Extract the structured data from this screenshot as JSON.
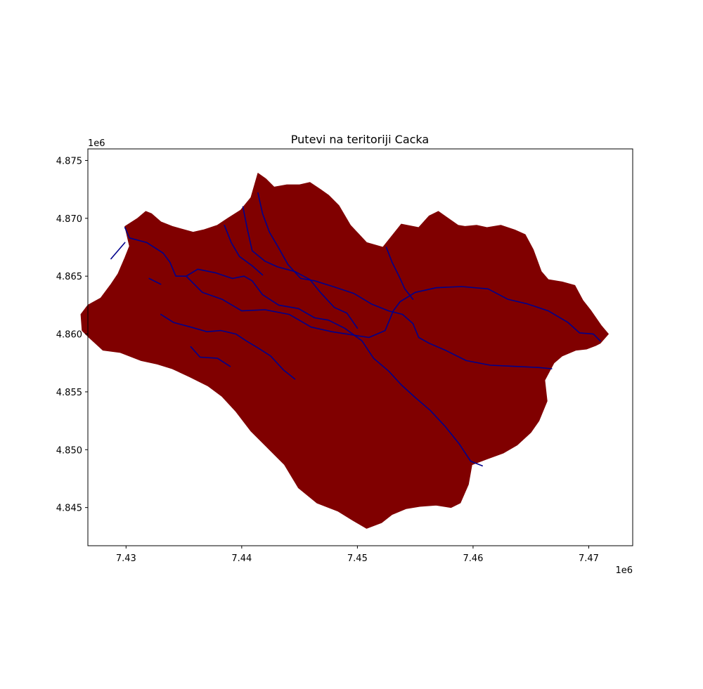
{
  "chart_data": {
    "type": "map",
    "title": "Putevi na teritoriji Cacka",
    "x_offset_label": "1e6",
    "y_offset_label": "1e6",
    "x_ticks": [
      7.43,
      7.44,
      7.45,
      7.46,
      7.47
    ],
    "x_tick_labels": [
      "7.43",
      "7.44",
      "7.45",
      "7.46",
      "7.47"
    ],
    "y_ticks": [
      4.845,
      4.85,
      4.855,
      4.86,
      4.865,
      4.87,
      4.875
    ],
    "y_tick_labels": [
      "4.845",
      "4.850",
      "4.855",
      "4.860",
      "4.865",
      "4.870",
      "4.875"
    ],
    "xlim": [
      7.4267,
      7.4738
    ],
    "ylim": [
      4.8417,
      4.876
    ],
    "grid": false,
    "colors": {
      "territory_fill": "#800000",
      "road_line": "#00008b"
    },
    "layers": [
      {
        "name": "territory",
        "kind": "polygon",
        "polygon": [
          [
            7.4299,
            4.8693
          ],
          [
            7.431,
            4.87
          ],
          [
            7.4317,
            4.8706
          ],
          [
            7.4322,
            4.8704
          ],
          [
            7.433,
            4.8697
          ],
          [
            7.434,
            4.8693
          ],
          [
            7.4358,
            4.8688
          ],
          [
            7.4367,
            4.869
          ],
          [
            7.4376,
            4.8693
          ],
          [
            7.4379,
            4.8694
          ],
          [
            7.4388,
            4.87
          ],
          [
            7.4399,
            4.8707
          ],
          [
            7.4408,
            4.8718
          ],
          [
            7.4414,
            4.8739
          ],
          [
            7.4421,
            4.8734
          ],
          [
            7.4428,
            4.8727
          ],
          [
            7.4439,
            4.8729
          ],
          [
            7.445,
            4.8729
          ],
          [
            7.4459,
            4.8731
          ],
          [
            7.4468,
            4.8725
          ],
          [
            7.4475,
            4.872
          ],
          [
            7.4484,
            4.8711
          ],
          [
            7.4494,
            4.8694
          ],
          [
            7.4508,
            4.8679
          ],
          [
            7.4522,
            4.8675
          ],
          [
            7.4538,
            4.8695
          ],
          [
            7.4553,
            4.8692
          ],
          [
            7.4562,
            4.8702
          ],
          [
            7.457,
            4.8706
          ],
          [
            7.4577,
            4.8701
          ],
          [
            7.4587,
            4.8694
          ],
          [
            7.4593,
            4.8693
          ],
          [
            7.4603,
            4.8694
          ],
          [
            7.4612,
            4.8692
          ],
          [
            7.4624,
            4.8694
          ],
          [
            7.4636,
            4.869
          ],
          [
            7.4645,
            4.8686
          ],
          [
            7.4652,
            4.8673
          ],
          [
            7.4659,
            4.8654
          ],
          [
            7.4665,
            4.8647
          ],
          [
            7.4677,
            4.8645
          ],
          [
            7.4688,
            4.8642
          ],
          [
            7.4695,
            4.8629
          ],
          [
            7.4702,
            4.862
          ],
          [
            7.4711,
            4.8607
          ],
          [
            7.4717,
            4.86
          ],
          [
            7.471,
            4.8592
          ],
          [
            7.4706,
            4.859
          ],
          [
            7.4698,
            4.8587
          ],
          [
            7.4689,
            4.8586
          ],
          [
            7.4677,
            4.8581
          ],
          [
            7.467,
            4.8575
          ],
          [
            7.4662,
            4.856
          ],
          [
            7.4664,
            4.8542
          ],
          [
            7.4657,
            4.8525
          ],
          [
            7.465,
            4.8515
          ],
          [
            7.4638,
            4.8504
          ],
          [
            7.4626,
            4.8497
          ],
          [
            7.4612,
            4.8492
          ],
          [
            7.4599,
            4.8487
          ],
          [
            7.4596,
            4.847
          ],
          [
            7.4589,
            4.8454
          ],
          [
            7.4581,
            4.845
          ],
          [
            7.4568,
            4.8452
          ],
          [
            7.4554,
            4.8451
          ],
          [
            7.4542,
            4.8449
          ],
          [
            7.453,
            4.8444
          ],
          [
            7.4521,
            4.8437
          ],
          [
            7.4508,
            4.8432
          ],
          [
            7.4496,
            4.8439
          ],
          [
            7.4483,
            4.8447
          ],
          [
            7.4465,
            4.8454
          ],
          [
            7.4449,
            4.8467
          ],
          [
            7.4437,
            4.8487
          ],
          [
            7.4421,
            4.8503
          ],
          [
            7.4408,
            4.8516
          ],
          [
            7.4395,
            4.8533
          ],
          [
            7.4383,
            4.8546
          ],
          [
            7.4371,
            4.8555
          ],
          [
            7.4355,
            4.8563
          ],
          [
            7.434,
            4.857
          ],
          [
            7.4327,
            4.8574
          ],
          [
            7.4313,
            4.8577
          ],
          [
            7.4295,
            4.8584
          ],
          [
            7.428,
            4.8586
          ],
          [
            7.4268,
            4.8597
          ],
          [
            7.4262,
            4.8603
          ],
          [
            7.4261,
            4.8617
          ],
          [
            7.4267,
            4.8625
          ],
          [
            7.4278,
            4.8631
          ],
          [
            7.4287,
            4.8643
          ],
          [
            7.4293,
            4.8652
          ],
          [
            7.4299,
            4.8666
          ],
          [
            7.4303,
            4.8676
          ],
          [
            7.4299,
            4.8693
          ]
        ]
      },
      {
        "name": "roads",
        "kind": "lines",
        "lines": [
          [
            [
              7.4299,
              4.8692
            ],
            [
              7.4303,
              4.8683
            ],
            [
              7.4318,
              4.8679
            ],
            [
              7.4332,
              4.867
            ],
            [
              7.4338,
              4.8662
            ],
            [
              7.4343,
              4.865
            ],
            [
              7.4352,
              4.865
            ],
            [
              7.4362,
              4.8656
            ],
            [
              7.4377,
              4.8653
            ],
            [
              7.4392,
              4.8648
            ],
            [
              7.4402,
              4.865
            ],
            [
              7.4409,
              4.8646
            ],
            [
              7.4418,
              4.8634
            ],
            [
              7.4432,
              4.8625
            ],
            [
              7.4449,
              4.8622
            ],
            [
              7.4463,
              4.8614
            ],
            [
              7.4475,
              4.8612
            ],
            [
              7.4489,
              4.8605
            ],
            [
              7.4504,
              4.8594
            ],
            [
              7.4514,
              4.8579
            ],
            [
              7.4527,
              4.8568
            ],
            [
              7.4538,
              4.8556
            ],
            [
              7.4549,
              4.8546
            ],
            [
              7.4563,
              4.8534
            ],
            [
              7.4576,
              4.852
            ],
            [
              7.4588,
              4.8505
            ],
            [
              7.4598,
              4.849
            ],
            [
              7.4608,
              4.8486
            ]
          ],
          [
            [
              7.4352,
              4.865
            ],
            [
              7.4366,
              4.8636
            ],
            [
              7.4383,
              4.863
            ],
            [
              7.44,
              4.862
            ],
            [
              7.442,
              4.8621
            ],
            [
              7.4441,
              4.8617
            ],
            [
              7.446,
              4.8606
            ],
            [
              7.4478,
              4.8602
            ],
            [
              7.4497,
              4.8599
            ],
            [
              7.451,
              4.8597
            ],
            [
              7.4524,
              4.8603
            ],
            [
              7.4531,
              4.862
            ],
            [
              7.4537,
              4.8628
            ],
            [
              7.455,
              4.8636
            ],
            [
              7.4568,
              4.864
            ],
            [
              7.459,
              4.8641
            ],
            [
              7.4613,
              4.8639
            ],
            [
              7.463,
              4.863
            ],
            [
              7.4647,
              4.8626
            ],
            [
              7.4665,
              4.862
            ],
            [
              7.4682,
              4.861
            ],
            [
              7.4692,
              4.8601
            ],
            [
              7.4704,
              4.86
            ],
            [
              7.471,
              4.8594
            ]
          ],
          [
            [
              7.4414,
              4.8722
            ],
            [
              7.4418,
              4.8704
            ],
            [
              7.4424,
              4.8688
            ],
            [
              7.4431,
              4.8676
            ],
            [
              7.444,
              4.866
            ],
            [
              7.4451,
              4.8648
            ],
            [
              7.4463,
              4.8646
            ],
            [
              7.4479,
              4.8641
            ],
            [
              7.4497,
              4.8635
            ],
            [
              7.4512,
              4.8626
            ],
            [
              7.4527,
              4.862
            ],
            [
              7.4539,
              4.8617
            ],
            [
              7.4548,
              4.8609
            ],
            [
              7.4553,
              4.8597
            ],
            [
              7.4562,
              4.8592
            ],
            [
              7.4576,
              4.8586
            ],
            [
              7.4594,
              4.8577
            ],
            [
              7.4615,
              4.8573
            ],
            [
              7.4637,
              4.8572
            ],
            [
              7.4657,
              4.8571
            ],
            [
              7.4668,
              4.857
            ]
          ],
          [
            [
              7.4401,
              4.871
            ],
            [
              7.4405,
              4.869
            ],
            [
              7.4409,
              4.8672
            ],
            [
              7.442,
              4.8663
            ],
            [
              7.4431,
              4.8658
            ],
            [
              7.4446,
              4.8654
            ],
            [
              7.4459,
              4.8647
            ],
            [
              7.4468,
              4.8636
            ],
            [
              7.448,
              4.8623
            ],
            [
              7.4491,
              4.8618
            ],
            [
              7.45,
              4.8605
            ]
          ],
          [
            [
              7.4385,
              4.8694
            ],
            [
              7.4391,
              4.8679
            ],
            [
              7.4398,
              4.8667
            ],
            [
              7.4409,
              4.8659
            ],
            [
              7.4418,
              4.8651
            ]
          ],
          [
            [
              7.433,
              4.8617
            ],
            [
              7.4341,
              4.861
            ],
            [
              7.4356,
              4.8606
            ],
            [
              7.437,
              4.8602
            ],
            [
              7.4382,
              4.8603
            ],
            [
              7.4395,
              4.86
            ],
            [
              7.4404,
              4.8594
            ],
            [
              7.4414,
              4.8588
            ],
            [
              7.4425,
              4.8581
            ],
            [
              7.4436,
              4.8569
            ],
            [
              7.4446,
              4.8561
            ]
          ],
          [
            [
              7.4525,
              4.8675
            ],
            [
              7.453,
              4.8662
            ],
            [
              7.4536,
              4.865
            ],
            [
              7.4541,
              4.8639
            ],
            [
              7.4548,
              4.863
            ]
          ],
          [
            [
              7.4299,
              4.8679
            ],
            [
              7.4287,
              4.8665
            ]
          ],
          [
            [
              7.432,
              4.8648
            ],
            [
              7.433,
              4.8643
            ]
          ],
          [
            [
              7.4356,
              4.8589
            ],
            [
              7.4364,
              4.858
            ],
            [
              7.4379,
              4.8579
            ],
            [
              7.439,
              4.8572
            ]
          ]
        ]
      }
    ]
  }
}
